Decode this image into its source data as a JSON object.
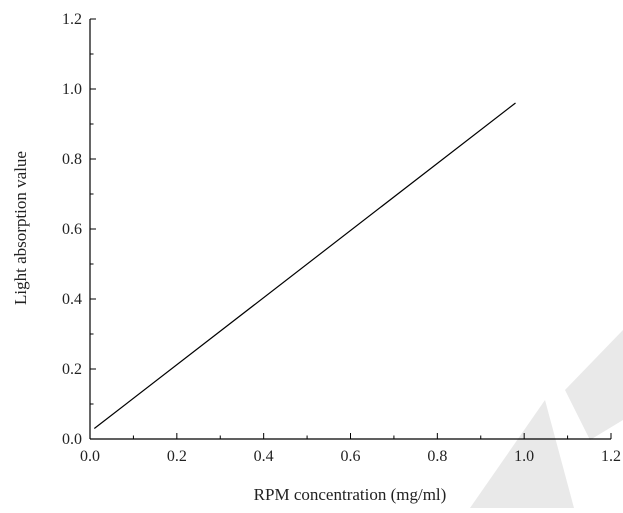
{
  "chart_data": {
    "type": "line",
    "title": "",
    "xlabel": "RPM concentration (mg/ml)",
    "ylabel": "Light absorption value",
    "xlim": [
      0.0,
      1.2
    ],
    "ylim": [
      0.0,
      1.2
    ],
    "x_ticks": [
      "0.0",
      "0.2",
      "0.4",
      "0.6",
      "0.8",
      "1.0",
      "1.2"
    ],
    "y_ticks": [
      "0.0",
      "0.2",
      "0.4",
      "0.6",
      "0.8",
      "1.0",
      "1.2"
    ],
    "grid": false,
    "legend": "none",
    "series": [
      {
        "x": [
          0.01,
          0.98
        ],
        "y": [
          0.03,
          0.96
        ],
        "color": "#000000"
      }
    ],
    "watermark_color": "#e9e9e9"
  }
}
